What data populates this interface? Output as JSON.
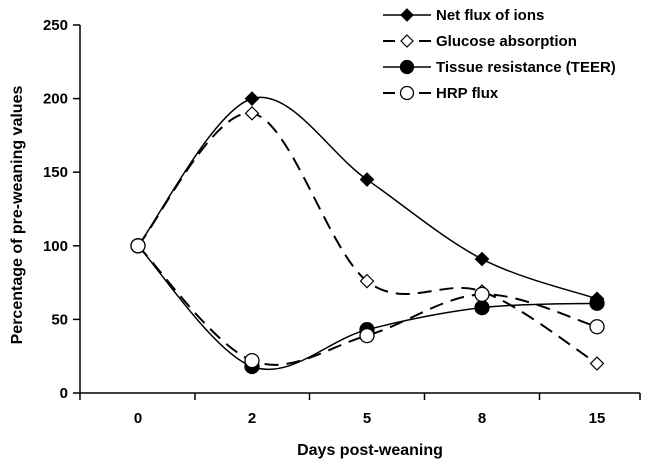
{
  "chart_data": {
    "type": "line",
    "title": "",
    "xlabel": "Days post-weaning",
    "ylabel": "Percentage of pre-weaning values",
    "categories": [
      "0",
      "2",
      "5",
      "8",
      "15"
    ],
    "ylim": [
      0,
      250
    ],
    "yticks": [
      0,
      50,
      100,
      150,
      200,
      250
    ],
    "grid": false,
    "legend_position": "top-right",
    "series": [
      {
        "name": "Net flux of ions",
        "values": [
          100,
          200,
          145,
          91,
          64
        ],
        "marker": "diamond",
        "filled": true,
        "dashed": false
      },
      {
        "name": "Glucose absorption",
        "values": [
          100,
          190,
          76,
          69,
          20
        ],
        "marker": "diamond",
        "filled": false,
        "dashed": true
      },
      {
        "name": "Tissue resistance (TEER)",
        "values": [
          100,
          18,
          43,
          58,
          61
        ],
        "marker": "circle",
        "filled": true,
        "dashed": false
      },
      {
        "name": "HRP flux",
        "values": [
          100,
          22,
          39,
          67,
          45
        ],
        "marker": "circle",
        "filled": false,
        "dashed": true
      }
    ]
  }
}
